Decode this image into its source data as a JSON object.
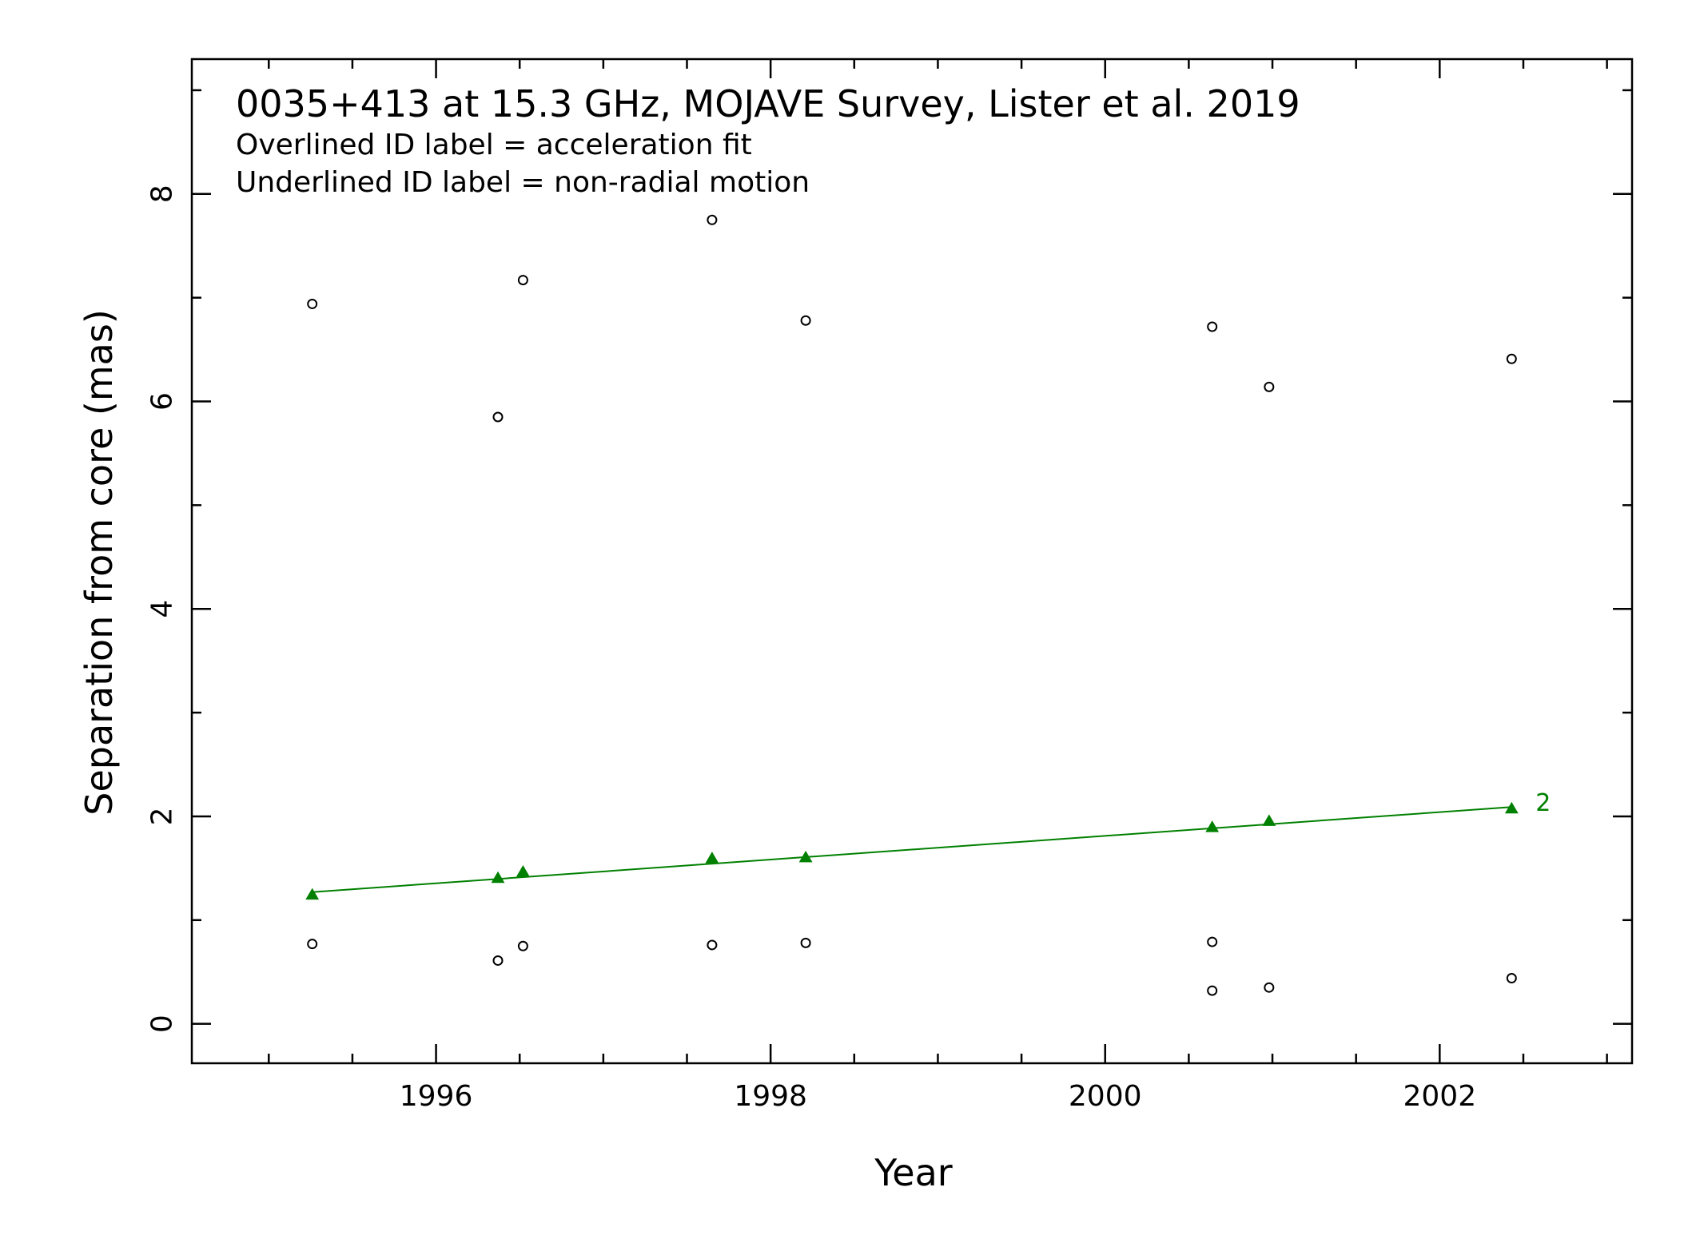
{
  "chart_data": {
    "type": "scatter",
    "title": "0035+413 at 15.3 GHz, MOJAVE Survey, Lister et al. 2019",
    "annotations": [
      "Overlined ID label = acceleration fit",
      "Underlined ID label = non-radial motion"
    ],
    "xlabel": "Year",
    "ylabel": "Separation from core (mas)",
    "xlim": [
      1994.54,
      2003.15
    ],
    "ylim": [
      -0.38,
      9.3
    ],
    "x_ticks": [
      1996,
      1998,
      2000,
      2002
    ],
    "x_tick_labels": [
      "1996",
      "1998",
      "2000",
      "2002"
    ],
    "x_minor_step": 0.5,
    "y_ticks": [
      0,
      2,
      4,
      6,
      8
    ],
    "y_tick_labels": [
      "0",
      "2",
      "4",
      "6",
      "8"
    ],
    "y_minor_step": 1,
    "grid": false,
    "series": [
      {
        "name": "",
        "marker": "open-circle",
        "color": "#000000",
        "points": [
          [
            1995.26,
            0.77
          ],
          [
            1995.26,
            6.94
          ],
          [
            1996.37,
            0.61
          ],
          [
            1996.37,
            5.85
          ],
          [
            1996.52,
            0.75
          ],
          [
            1996.52,
            7.17
          ],
          [
            1997.65,
            0.76
          ],
          [
            1997.65,
            7.75
          ],
          [
            1998.21,
            0.78
          ],
          [
            1998.21,
            6.78
          ],
          [
            2000.64,
            0.79
          ],
          [
            2000.64,
            0.32
          ],
          [
            2000.64,
            6.72
          ],
          [
            2000.98,
            0.35
          ],
          [
            2000.98,
            6.14
          ],
          [
            2002.43,
            0.44
          ],
          [
            2002.43,
            6.41
          ]
        ]
      },
      {
        "name": "2",
        "marker": "filled-triangle",
        "color": "#008000",
        "points": [
          [
            1995.26,
            1.24
          ],
          [
            1996.37,
            1.4
          ],
          [
            1996.52,
            1.46
          ],
          [
            1997.65,
            1.59
          ],
          [
            1998.21,
            1.6
          ],
          [
            2000.64,
            1.89
          ],
          [
            2000.98,
            1.95
          ],
          [
            2002.43,
            2.07
          ]
        ],
        "fit_line": [
          [
            1995.26,
            1.27
          ],
          [
            2002.43,
            2.09
          ]
        ]
      }
    ]
  }
}
